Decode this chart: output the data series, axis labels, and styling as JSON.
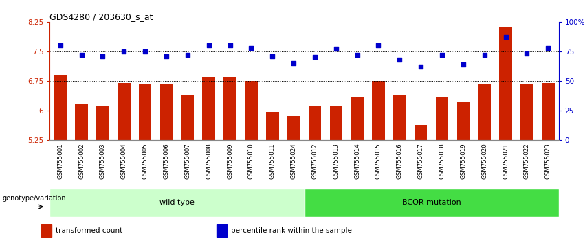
{
  "title": "GDS4280 / 203630_s_at",
  "categories": [
    "GSM755001",
    "GSM755002",
    "GSM755003",
    "GSM755004",
    "GSM755005",
    "GSM755006",
    "GSM755007",
    "GSM755008",
    "GSM755009",
    "GSM755010",
    "GSM755011",
    "GSM755024",
    "GSM755012",
    "GSM755013",
    "GSM755014",
    "GSM755015",
    "GSM755016",
    "GSM755017",
    "GSM755018",
    "GSM755019",
    "GSM755020",
    "GSM755021",
    "GSM755022",
    "GSM755023"
  ],
  "bar_values": [
    6.9,
    6.15,
    6.1,
    6.7,
    6.68,
    6.65,
    6.4,
    6.85,
    6.85,
    6.75,
    5.95,
    5.85,
    6.12,
    6.1,
    6.35,
    6.75,
    6.38,
    5.62,
    6.35,
    6.2,
    6.65,
    8.1,
    6.65,
    6.7
  ],
  "dot_values": [
    80,
    72,
    71,
    75,
    75,
    71,
    72,
    80,
    80,
    78,
    71,
    65,
    70,
    77,
    72,
    80,
    68,
    62,
    72,
    64,
    72,
    87,
    73,
    78
  ],
  "ylim_left": [
    5.25,
    8.25
  ],
  "ylim_right": [
    0,
    100
  ],
  "yticks_left": [
    5.25,
    6.0,
    6.75,
    7.5,
    8.25
  ],
  "ytick_labels_left": [
    "5.25",
    "6",
    "6.75",
    "7.5",
    "8.25"
  ],
  "yticks_right": [
    0,
    25,
    50,
    75,
    100
  ],
  "ytick_labels_right": [
    "0",
    "25",
    "50",
    "75",
    "100%"
  ],
  "hlines": [
    6.0,
    6.75,
    7.5
  ],
  "bar_color": "#CC2200",
  "dot_color": "#0000CC",
  "groups": [
    {
      "label": "wild type",
      "start": 0,
      "end": 12,
      "color": "#CCFFCC"
    },
    {
      "label": "BCOR mutation",
      "start": 12,
      "end": 24,
      "color": "#44DD44"
    }
  ],
  "xlabel_text": "genotype/variation",
  "legend": [
    {
      "color": "#CC2200",
      "label": "transformed count"
    },
    {
      "color": "#0000CC",
      "label": "percentile rank within the sample"
    }
  ],
  "background_color": "#FFFFFF",
  "xticklabel_bg": "#CCCCCC"
}
